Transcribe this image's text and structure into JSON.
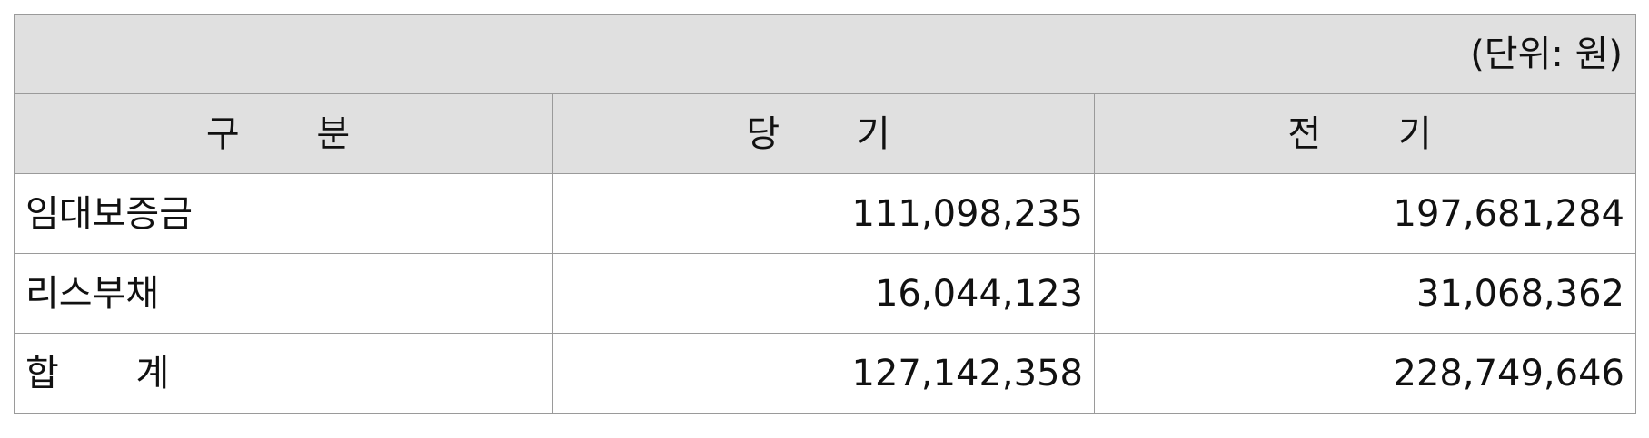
{
  "unit_label": "(단위: 원)",
  "headers": {
    "category": "구 분",
    "current": "당 기",
    "previous": "전 기"
  },
  "rows": [
    {
      "label": "임대보증금",
      "current": "111,098,235",
      "previous": "197,681,284"
    },
    {
      "label": "리스부채",
      "current": "16,044,123",
      "previous": "31,068,362"
    },
    {
      "label": "합 계",
      "current": "127,142,358",
      "previous": "228,749,646"
    }
  ],
  "colors": {
    "header_background": "#e0e0e0",
    "border": "#9a9a9a",
    "text": "#111111"
  }
}
